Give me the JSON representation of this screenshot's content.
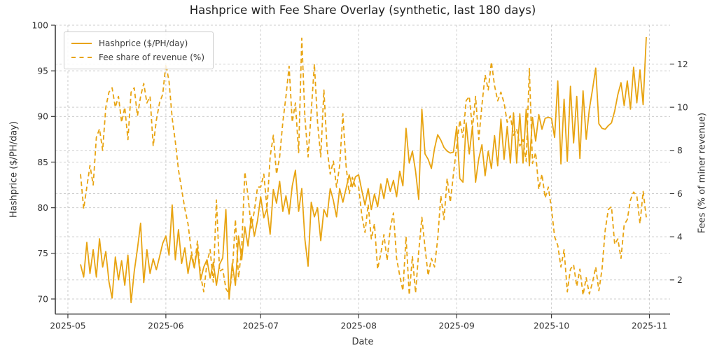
{
  "title": "Hashprice with Fee Share Overlay (synthetic, last 180 days)",
  "axes": {
    "x": {
      "label": "Date",
      "tick_labels": [
        "2025-05",
        "2025-06",
        "2025-07",
        "2025-08",
        "2025-09",
        "2025-10",
        "2025-11"
      ],
      "tick_days": [
        -4,
        27,
        57,
        88,
        119,
        149,
        180
      ]
    },
    "y_left": {
      "label": "Hashprice ($/PH/day)",
      "tick_labels": [
        "70",
        "75",
        "80",
        "85",
        "90",
        "95",
        "100"
      ],
      "tick_values": [
        70,
        75,
        80,
        85,
        90,
        95,
        100
      ]
    },
    "y_right": {
      "label": "Fees (% of miner revenue)",
      "tick_labels": [
        "2",
        "4",
        "6",
        "8",
        "10",
        "12"
      ],
      "tick_values": [
        2,
        4,
        6,
        8,
        10,
        12
      ]
    }
  },
  "legend": {
    "entries": [
      {
        "label": "Hashprice ($/PH/day)",
        "style": "solid"
      },
      {
        "label": "Fee share of revenue (%)",
        "style": "dashed"
      }
    ]
  },
  "colors": {
    "series": "#E8A412",
    "grid": "#cdcdcd",
    "spine": "#3d3d3d",
    "tick_text": "#333333",
    "title_text": "#222222"
  },
  "chart_data": {
    "type": "line",
    "title": "Hashprice with Fee Share Overlay (synthetic, last 180 days)",
    "xlabel": "Date",
    "ylabel_left": "Hashprice ($/PH/day)",
    "ylabel_right": "Fees (% of miner revenue)",
    "x_start_date": "2025-05-05",
    "x_end_date": "2025-10-31",
    "x_unit": "days",
    "grid": true,
    "legend_position": "upper left",
    "ylim_left": [
      68.35,
      100.0
    ],
    "ylim_right": [
      0.42,
      13.8
    ],
    "series": [
      {
        "name": "Hashprice ($/PH/day)",
        "axis": "left",
        "style": "solid",
        "values": [
          73.8,
          72.4,
          76.2,
          72.8,
          75.4,
          72.4,
          76.6,
          73.5,
          75.2,
          71.9,
          70.1,
          74.6,
          72.1,
          74.2,
          71.5,
          74.8,
          69.6,
          73.0,
          75.5,
          78.3,
          71.8,
          75.4,
          72.8,
          74.4,
          73.2,
          74.6,
          76.1,
          76.9,
          74.8,
          80.3,
          74.3,
          77.6,
          73.9,
          75.6,
          72.8,
          74.8,
          73.4,
          75.6,
          72.1,
          73.5,
          74.3,
          72.3,
          74.0,
          71.5,
          73.8,
          74.5,
          79.8,
          70.0,
          73.9,
          71.5,
          76.9,
          74.3,
          77.9,
          75.8,
          79.0,
          76.9,
          78.6,
          81.2,
          78.9,
          79.9,
          77.1,
          82.0,
          80.5,
          82.9,
          79.6,
          81.3,
          79.3,
          82.4,
          84.1,
          79.6,
          82.1,
          76.5,
          73.6,
          80.6,
          79.0,
          80.0,
          76.4,
          79.8,
          79.0,
          82.1,
          80.8,
          79.0,
          82.1,
          80.6,
          82.1,
          83.6,
          82.3,
          83.4,
          83.6,
          81.9,
          80.3,
          82.1,
          79.8,
          81.5,
          80.1,
          82.6,
          81.0,
          83.2,
          81.8,
          83.0,
          81.2,
          84.0,
          82.4,
          88.7,
          84.9,
          86.2,
          84.0,
          80.9,
          90.8,
          85.9,
          85.3,
          84.3,
          86.5,
          88.0,
          87.4,
          86.6,
          86.2,
          86.0,
          86.1,
          88.9,
          83.2,
          82.8,
          89.3,
          85.9,
          88.9,
          82.8,
          85.4,
          86.9,
          83.5,
          86.2,
          84.3,
          87.9,
          84.6,
          89.7,
          85.3,
          88.9,
          84.9,
          90.4,
          84.9,
          90.3,
          84.9,
          90.8,
          84.6,
          89.9,
          87.3,
          90.2,
          88.6,
          89.8,
          89.9,
          89.8,
          87.7,
          93.9,
          84.8,
          91.9,
          85.1,
          93.3,
          87.1,
          92.2,
          85.4,
          92.8,
          87.5,
          90.8,
          93.0,
          95.3,
          89.2,
          88.7,
          88.6,
          89.0,
          89.3,
          90.6,
          92.4,
          93.7,
          91.2,
          93.9,
          90.8,
          95.4,
          91.5,
          95.1,
          91.3,
          98.7
        ]
      },
      {
        "name": "Fee share of revenue (%)",
        "axis": "right",
        "style": "dashed",
        "values": [
          6.9,
          5.3,
          6.3,
          7.3,
          6.4,
          8.6,
          9.0,
          8.0,
          10.0,
          10.7,
          10.9,
          10.0,
          10.5,
          9.3,
          10.0,
          8.5,
          10.7,
          10.9,
          9.6,
          10.5,
          11.1,
          10.2,
          10.5,
          8.2,
          9.4,
          10.2,
          10.6,
          12.0,
          11.2,
          9.5,
          8.4,
          7.1,
          6.2,
          5.3,
          4.6,
          3.4,
          2.6,
          3.8,
          2.2,
          1.45,
          2.8,
          3.4,
          1.9,
          5.7,
          2.4,
          2.5,
          1.6,
          1.35,
          2.3,
          4.8,
          2.1,
          3.5,
          7.0,
          5.9,
          4.4,
          5.2,
          6.3,
          6.3,
          6.9,
          5.3,
          7.7,
          8.7,
          6.9,
          7.7,
          9.3,
          10.5,
          11.9,
          9.3,
          10.2,
          7.9,
          13.2,
          9.5,
          7.7,
          9.8,
          12.0,
          9.3,
          7.7,
          10.8,
          8.1,
          6.9,
          7.5,
          6.3,
          7.3,
          9.7,
          7.3,
          6.0,
          6.75,
          6.3,
          6.3,
          5.0,
          4.2,
          5.5,
          3.9,
          4.6,
          2.5,
          3.2,
          4.1,
          2.9,
          4.4,
          5.1,
          3.0,
          2.2,
          1.5,
          4.0,
          1.3,
          3.1,
          1.4,
          3.3,
          4.9,
          3.5,
          2.2,
          3.0,
          2.6,
          3.9,
          5.9,
          4.8,
          6.7,
          5.6,
          6.9,
          8.2,
          9.4,
          8.6,
          10.3,
          10.5,
          9.0,
          10.5,
          8.5,
          10.1,
          11.5,
          10.8,
          12.1,
          11.0,
          10.3,
          10.7,
          10.2,
          9.3,
          9.6,
          8.7,
          9.0,
          8.2,
          8.5,
          7.5,
          11.8,
          7.4,
          7.9,
          6.2,
          6.9,
          5.8,
          6.3,
          5.3,
          4.0,
          3.6,
          2.6,
          3.4,
          1.45,
          2.5,
          2.7,
          1.7,
          2.5,
          1.3,
          2.1,
          1.35,
          1.9,
          2.6,
          1.5,
          2.5,
          4.3,
          5.26,
          5.4,
          3.65,
          3.9,
          3.0,
          4.55,
          4.8,
          5.7,
          6.07,
          5.9,
          4.6,
          6.1,
          4.9
        ]
      }
    ]
  }
}
